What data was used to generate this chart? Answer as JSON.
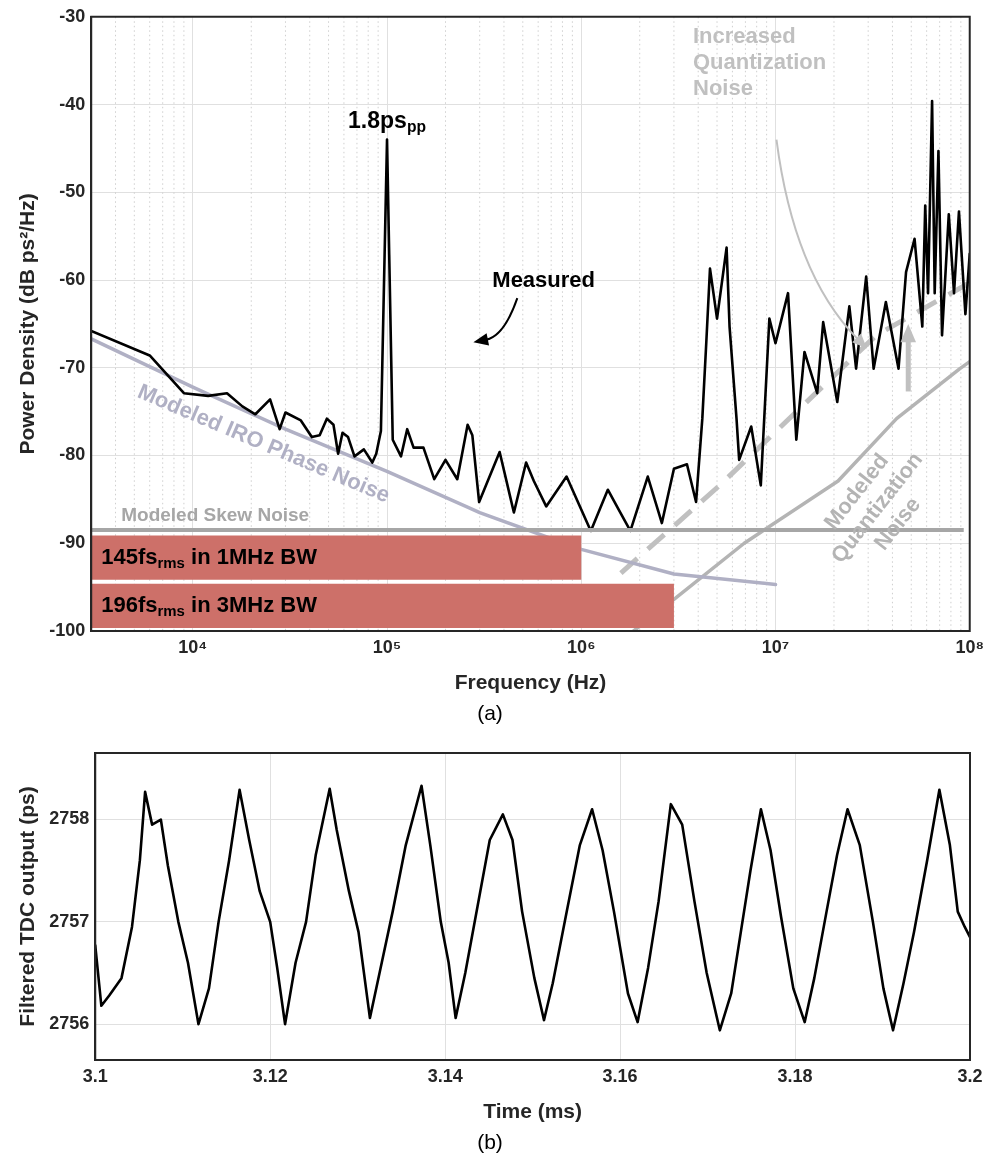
{
  "chart_data": [
    {
      "type": "line",
      "title": "(a)",
      "xlabel": "Frequency (Hz)",
      "ylabel": "Power Density (dB ps²/Hz)",
      "log": "x",
      "grid": true,
      "line_style": "solid",
      "xlim": [
        3000,
        100000000
      ],
      "ylim": [
        -100,
        -30
      ],
      "xticks": [
        {
          "value": 10000,
          "label": "10⁴"
        },
        {
          "value": 100000,
          "label": "10⁵"
        },
        {
          "value": 1000000,
          "label": "10⁶"
        },
        {
          "value": 10000000,
          "label": "10⁷"
        },
        {
          "value": 100000000,
          "label": "10⁸"
        }
      ],
      "yticks": [
        -100,
        -90,
        -80,
        -70,
        -60,
        -50,
        -40,
        -30
      ],
      "series": [
        {
          "name": "Measured",
          "color": "#000000",
          "x": [
            3000,
            6000,
            9000,
            12000,
            15000,
            18000,
            21000,
            25000,
            28000,
            30000,
            36000,
            41000,
            45000,
            49000,
            53000,
            56000,
            59000,
            63000,
            68000,
            76000,
            84000,
            88000,
            93000,
            100000,
            107000,
            118000,
            127000,
            137000,
            154000,
            175000,
            200000,
            230000,
            260000,
            275000,
            298000,
            380000,
            450000,
            520000,
            570000,
            660000,
            840000,
            1120000,
            1370000,
            1790000,
            2200000,
            2600000,
            3000000,
            3500000,
            3900000,
            4200000,
            4400000,
            4600000,
            5000000,
            5600000,
            5800000,
            6300000,
            6500000,
            7500000,
            8400000,
            9300000,
            10000000,
            11600000,
            12800000,
            14100000,
            16400000,
            17600000,
            20800000,
            24000000,
            26000000,
            29300000,
            32000000,
            37000000,
            43000000,
            47000000,
            52000000,
            57000000,
            59000000,
            61000000,
            64000000,
            66000000,
            69000000,
            72000000,
            78000000,
            83000000,
            88000000,
            95000000,
            100000000
          ],
          "values": [
            -65.8,
            -68.6,
            -72.9,
            -73.2,
            -72.9,
            -74.4,
            -75.3,
            -73.6,
            -77.0,
            -75.1,
            -76.0,
            -77.9,
            -77.7,
            -75.8,
            -76.5,
            -79.8,
            -77.4,
            -77.9,
            -80.1,
            -79.3,
            -80.8,
            -79.8,
            -77.2,
            -44.0,
            -78.2,
            -80.1,
            -77.0,
            -79.1,
            -79.1,
            -82.7,
            -80.5,
            -82.7,
            -76.5,
            -77.7,
            -85.3,
            -79.6,
            -86.5,
            -80.8,
            -82.9,
            -85.8,
            -82.4,
            -88.6,
            -83.9,
            -88.6,
            -82.4,
            -87.7,
            -81.5,
            -81.0,
            -85.3,
            -75.8,
            -67.2,
            -58.7,
            -64.4,
            -56.3,
            -65.3,
            -75.8,
            -80.5,
            -76.7,
            -83.4,
            -64.4,
            -67.2,
            -61.5,
            -78.2,
            -68.2,
            -72.9,
            -64.8,
            -73.9,
            -63.0,
            -70.1,
            -59.6,
            -70.1,
            -62.5,
            -70.1,
            -59.1,
            -55.3,
            -65.3,
            -51.5,
            -61.5,
            -39.6,
            -61.5,
            -45.3,
            -66.3,
            -52.5,
            -61.5,
            -52.2,
            -63.9,
            -57.0
          ]
        },
        {
          "name": "Modeled IRO Phase Noise",
          "color": "#b0b0c4",
          "x": [
            3000,
            10000,
            30000,
            100000,
            300000,
            1000000,
            3000000,
            10000000
          ],
          "values": [
            -66.7,
            -72.2,
            -77.0,
            -81.8,
            -86.5,
            -90.7,
            -93.5,
            -94.7
          ]
        },
        {
          "name": "Modeled Quantization Noise",
          "color": "#b4b4b4",
          "x": [
            1860000,
            3000000,
            6900000,
            21000000,
            42000000,
            89000000,
            100000000
          ],
          "values": [
            -100,
            -96.4,
            -90.0,
            -82.9,
            -75.8,
            -70.1,
            -69.3
          ]
        },
        {
          "name": "Increased Quantization Noise",
          "color": "#c0c0c0",
          "line_style": "dashed",
          "x": [
            1600000,
            5100000,
            33000000,
            100000000
          ],
          "values": [
            -93.4,
            -83.5,
            -66.3,
            -60.3
          ]
        }
      ],
      "ref_lines": [
        {
          "axis": "y",
          "value": -88.5,
          "label": "Modeled Skew Noise",
          "color": "#a6a6a6"
        }
      ],
      "bands": [
        {
          "axis": "x",
          "from": 3000,
          "to": 1000000,
          "label": "145fs$_{rms}$ in 1MHz BW",
          "color": "#cd7069"
        },
        {
          "axis": "x",
          "from": 3000,
          "to": 3000000,
          "label": "196fs$_{rms}$ in 3MHz BW",
          "color": "#cd7069"
        }
      ],
      "annotations": [
        {
          "text": "1.8ps$_{pp}$",
          "x": 100000,
          "y": -44.0
        }
      ]
    },
    {
      "type": "line",
      "title": "(b)",
      "xlabel": "Time (ms)",
      "ylabel": "Filtered TDC output (ps)",
      "grid": true,
      "line_style": "solid",
      "xlim": [
        3.1,
        3.2
      ],
      "ylim": [
        2755.65,
        2758.65
      ],
      "xticks": [
        3.1,
        3.12,
        3.14,
        3.16,
        3.18,
        3.2
      ],
      "yticks": [
        2756,
        2757,
        2758
      ],
      "x": [
        3.1,
        3.1007,
        3.1016,
        3.103,
        3.1042,
        3.1051,
        3.1057,
        3.1065,
        3.1075,
        3.1083,
        3.1095,
        3.1106,
        3.1118,
        3.113,
        3.1141,
        3.1153,
        3.1165,
        3.1176,
        3.1188,
        3.12,
        3.1208,
        3.1217,
        3.1229,
        3.1241,
        3.1252,
        3.1268,
        3.1276,
        3.129,
        3.1301,
        3.1314,
        3.1325,
        3.134,
        3.1355,
        3.1373,
        3.1383,
        3.1395,
        3.1404,
        3.1412,
        3.1423,
        3.1437,
        3.1451,
        3.1466,
        3.1477,
        3.1488,
        3.1502,
        3.1513,
        3.1523,
        3.1539,
        3.1554,
        3.1568,
        3.158,
        3.1593,
        3.1609,
        3.162,
        3.1632,
        3.1644,
        3.1658,
        3.1671,
        3.1685,
        3.1699,
        3.1714,
        3.1727,
        3.1738,
        3.1749,
        3.1761,
        3.1772,
        3.1784,
        3.1798,
        3.1811,
        3.1822,
        3.1836,
        3.1848,
        3.186,
        3.1874,
        3.1889,
        3.1901,
        3.1912,
        3.1924,
        3.1936,
        3.1951,
        3.1965,
        3.1977,
        3.1986,
        3.1994,
        3.2
      ],
      "series": [
        {
          "color": "#000000",
          "values": [
            2756.77,
            2756.18,
            2756.28,
            2756.45,
            2756.95,
            2757.6,
            2758.27,
            2757.95,
            2758.0,
            2757.55,
            2757.0,
            2756.6,
            2756.0,
            2756.35,
            2757.0,
            2757.6,
            2758.29,
            2757.8,
            2757.3,
            2757.0,
            2756.55,
            2756.0,
            2756.6,
            2757.0,
            2757.65,
            2758.3,
            2757.9,
            2757.3,
            2756.9,
            2756.06,
            2756.5,
            2757.1,
            2757.75,
            2758.33,
            2757.75,
            2757.0,
            2756.6,
            2756.06,
            2756.5,
            2757.15,
            2757.8,
            2758.05,
            2757.8,
            2757.1,
            2756.45,
            2756.04,
            2756.4,
            2757.1,
            2757.75,
            2758.1,
            2757.7,
            2757.1,
            2756.3,
            2756.02,
            2756.55,
            2757.2,
            2758.15,
            2757.95,
            2757.2,
            2756.5,
            2755.94,
            2756.3,
            2756.9,
            2757.5,
            2758.1,
            2757.7,
            2757.05,
            2756.35,
            2756.02,
            2756.45,
            2757.1,
            2757.65,
            2758.1,
            2757.75,
            2757.0,
            2756.35,
            2755.94,
            2756.4,
            2756.9,
            2757.6,
            2758.29,
            2757.75,
            2757.1,
            2756.95,
            2756.85
          ]
        }
      ]
    }
  ]
}
